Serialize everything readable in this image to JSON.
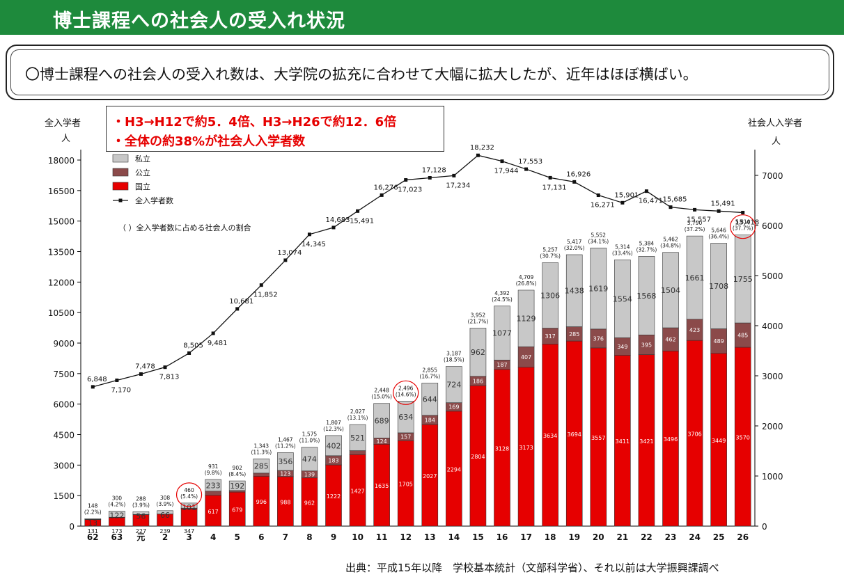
{
  "header": {
    "title": "博士課程への社会人の受入れ状況"
  },
  "summary": {
    "text": "〇博士課程への社会人の受入れ数は、大学院の拡充に合わせて大幅に拡大したが、近年はほぼ横ばい。"
  },
  "callout": {
    "line1": "・H3→H12で約5．4倍、H3→H26で約12．6倍",
    "line2": "・全体の約38%が社会人入学者数"
  },
  "axes": {
    "left_title": "全入学者",
    "left_unit": "人",
    "right_title": "社会人入学者",
    "right_unit": "人"
  },
  "source": {
    "text": "出典：平成15年以降　学校基本統計（文部科学省）、それ以前は大学振興課調べ"
  },
  "chart_data": {
    "type": "bar",
    "categories": [
      "62",
      "63",
      "元",
      "2",
      "3",
      "4",
      "5",
      "6",
      "7",
      "8",
      "9",
      "10",
      "11",
      "12",
      "13",
      "14",
      "15",
      "16",
      "17",
      "18",
      "19",
      "20",
      "21",
      "22",
      "23",
      "24",
      "25",
      "26"
    ],
    "series": [
      {
        "name": "国立",
        "axis": "right",
        "color": "#e60000",
        "values": [
          131,
          173,
          227,
          239,
          347,
          617,
          679,
          996,
          988,
          962,
          1222,
          1427,
          1635,
          1705,
          2027,
          2294,
          2804,
          3128,
          3173,
          3634,
          3694,
          3557,
          3411,
          3421,
          3496,
          3706,
          3449,
          3570
        ]
      },
      {
        "name": "公立",
        "axis": "right",
        "color": "#8b4a4a",
        "values": [
          4,
          5,
          5,
          3,
          12,
          81,
          31,
          62,
          123,
          139,
          183,
          79,
          124,
          157,
          184,
          169,
          186,
          187,
          407,
          317,
          285,
          376,
          349,
          395,
          462,
          423,
          489,
          485
        ]
      },
      {
        "name": "私立",
        "axis": "right",
        "color": "#c8c8c8",
        "values": [
          13,
          122,
          56,
          66,
          101,
          233,
          192,
          285,
          356,
          474,
          402,
          521,
          689,
          634,
          644,
          724,
          962,
          1077,
          1129,
          1306,
          1438,
          1619,
          1554,
          1568,
          1504,
          1661,
          1708,
          1755
        ]
      },
      {
        "name": "全入学者数",
        "axis": "left",
        "type": "line",
        "color": "#111111",
        "values": [
          6848,
          7170,
          7478,
          7813,
          8505,
          9481,
          10681,
          11852,
          13074,
          14345,
          14683,
          15491,
          16276,
          17023,
          17128,
          17234,
          18232,
          17944,
          17553,
          17131,
          16926,
          16271,
          15901,
          16471,
          15685,
          15557,
          15491,
          15418
        ]
      }
    ],
    "total_labels": [
      "148 (2.2%)",
      "300 (4.2%)",
      "288 (3.9%)",
      "308 (3.9%)",
      "460 (5.4%)",
      "931 (9.8%)",
      "902 (8.4%)",
      "1,343 (11.3%)",
      "1,467 (11.2%)",
      "1,575 (11.0%)",
      "1,807 (12.3%)",
      "2,027 (13.1%)",
      "2,448 (15.0%)",
      "2,496 (14.6%)",
      "2,855 (16.7%)",
      "3,187 (18.5%)",
      "3,952 (21.7%)",
      "4,392 (24.5%)",
      "4,709 (26.8%)",
      "5,257 (30.7%)",
      "5,417 (32.0%)",
      "5,552 (34.1%)",
      "5,314 (33.4%)",
      "5,384 (32.7%)",
      "5,462 (34.8%)",
      "5,790 (37.2%)",
      "5,646 (36.4%)",
      "5,810 (37.7%)"
    ],
    "line_labels": [
      "6,848",
      "7,170",
      "7,478",
      "7,813",
      "8,505",
      "9,481",
      "10,681",
      "11,852",
      "13,074",
      "14,345",
      "14,683",
      "15,491",
      "16,276",
      "17,023",
      "17,128",
      "17,234",
      "18,232",
      "17,944",
      "17,553",
      "17,131",
      "16,926",
      "16,271",
      "15,901",
      "16,471",
      "15,685",
      "15,557",
      "15,491",
      "15,418"
    ],
    "legend": [
      "私立",
      "公立",
      "国立",
      "全入学者数"
    ],
    "legend_position": "top-left",
    "annotation": "（ ）全入学者数に占める社会人の割合",
    "circled_categories": [
      "3",
      "12",
      "26"
    ],
    "y_left": {
      "ticks": [
        0,
        1500,
        3000,
        4500,
        6000,
        7500,
        9000,
        10500,
        12000,
        13500,
        15000,
        16500,
        18000
      ],
      "range": [
        0,
        18000
      ]
    },
    "y_right": {
      "ticks": [
        0,
        1000,
        2000,
        3000,
        4000,
        5000,
        6000,
        7000
      ],
      "range": [
        0,
        7500
      ]
    }
  }
}
